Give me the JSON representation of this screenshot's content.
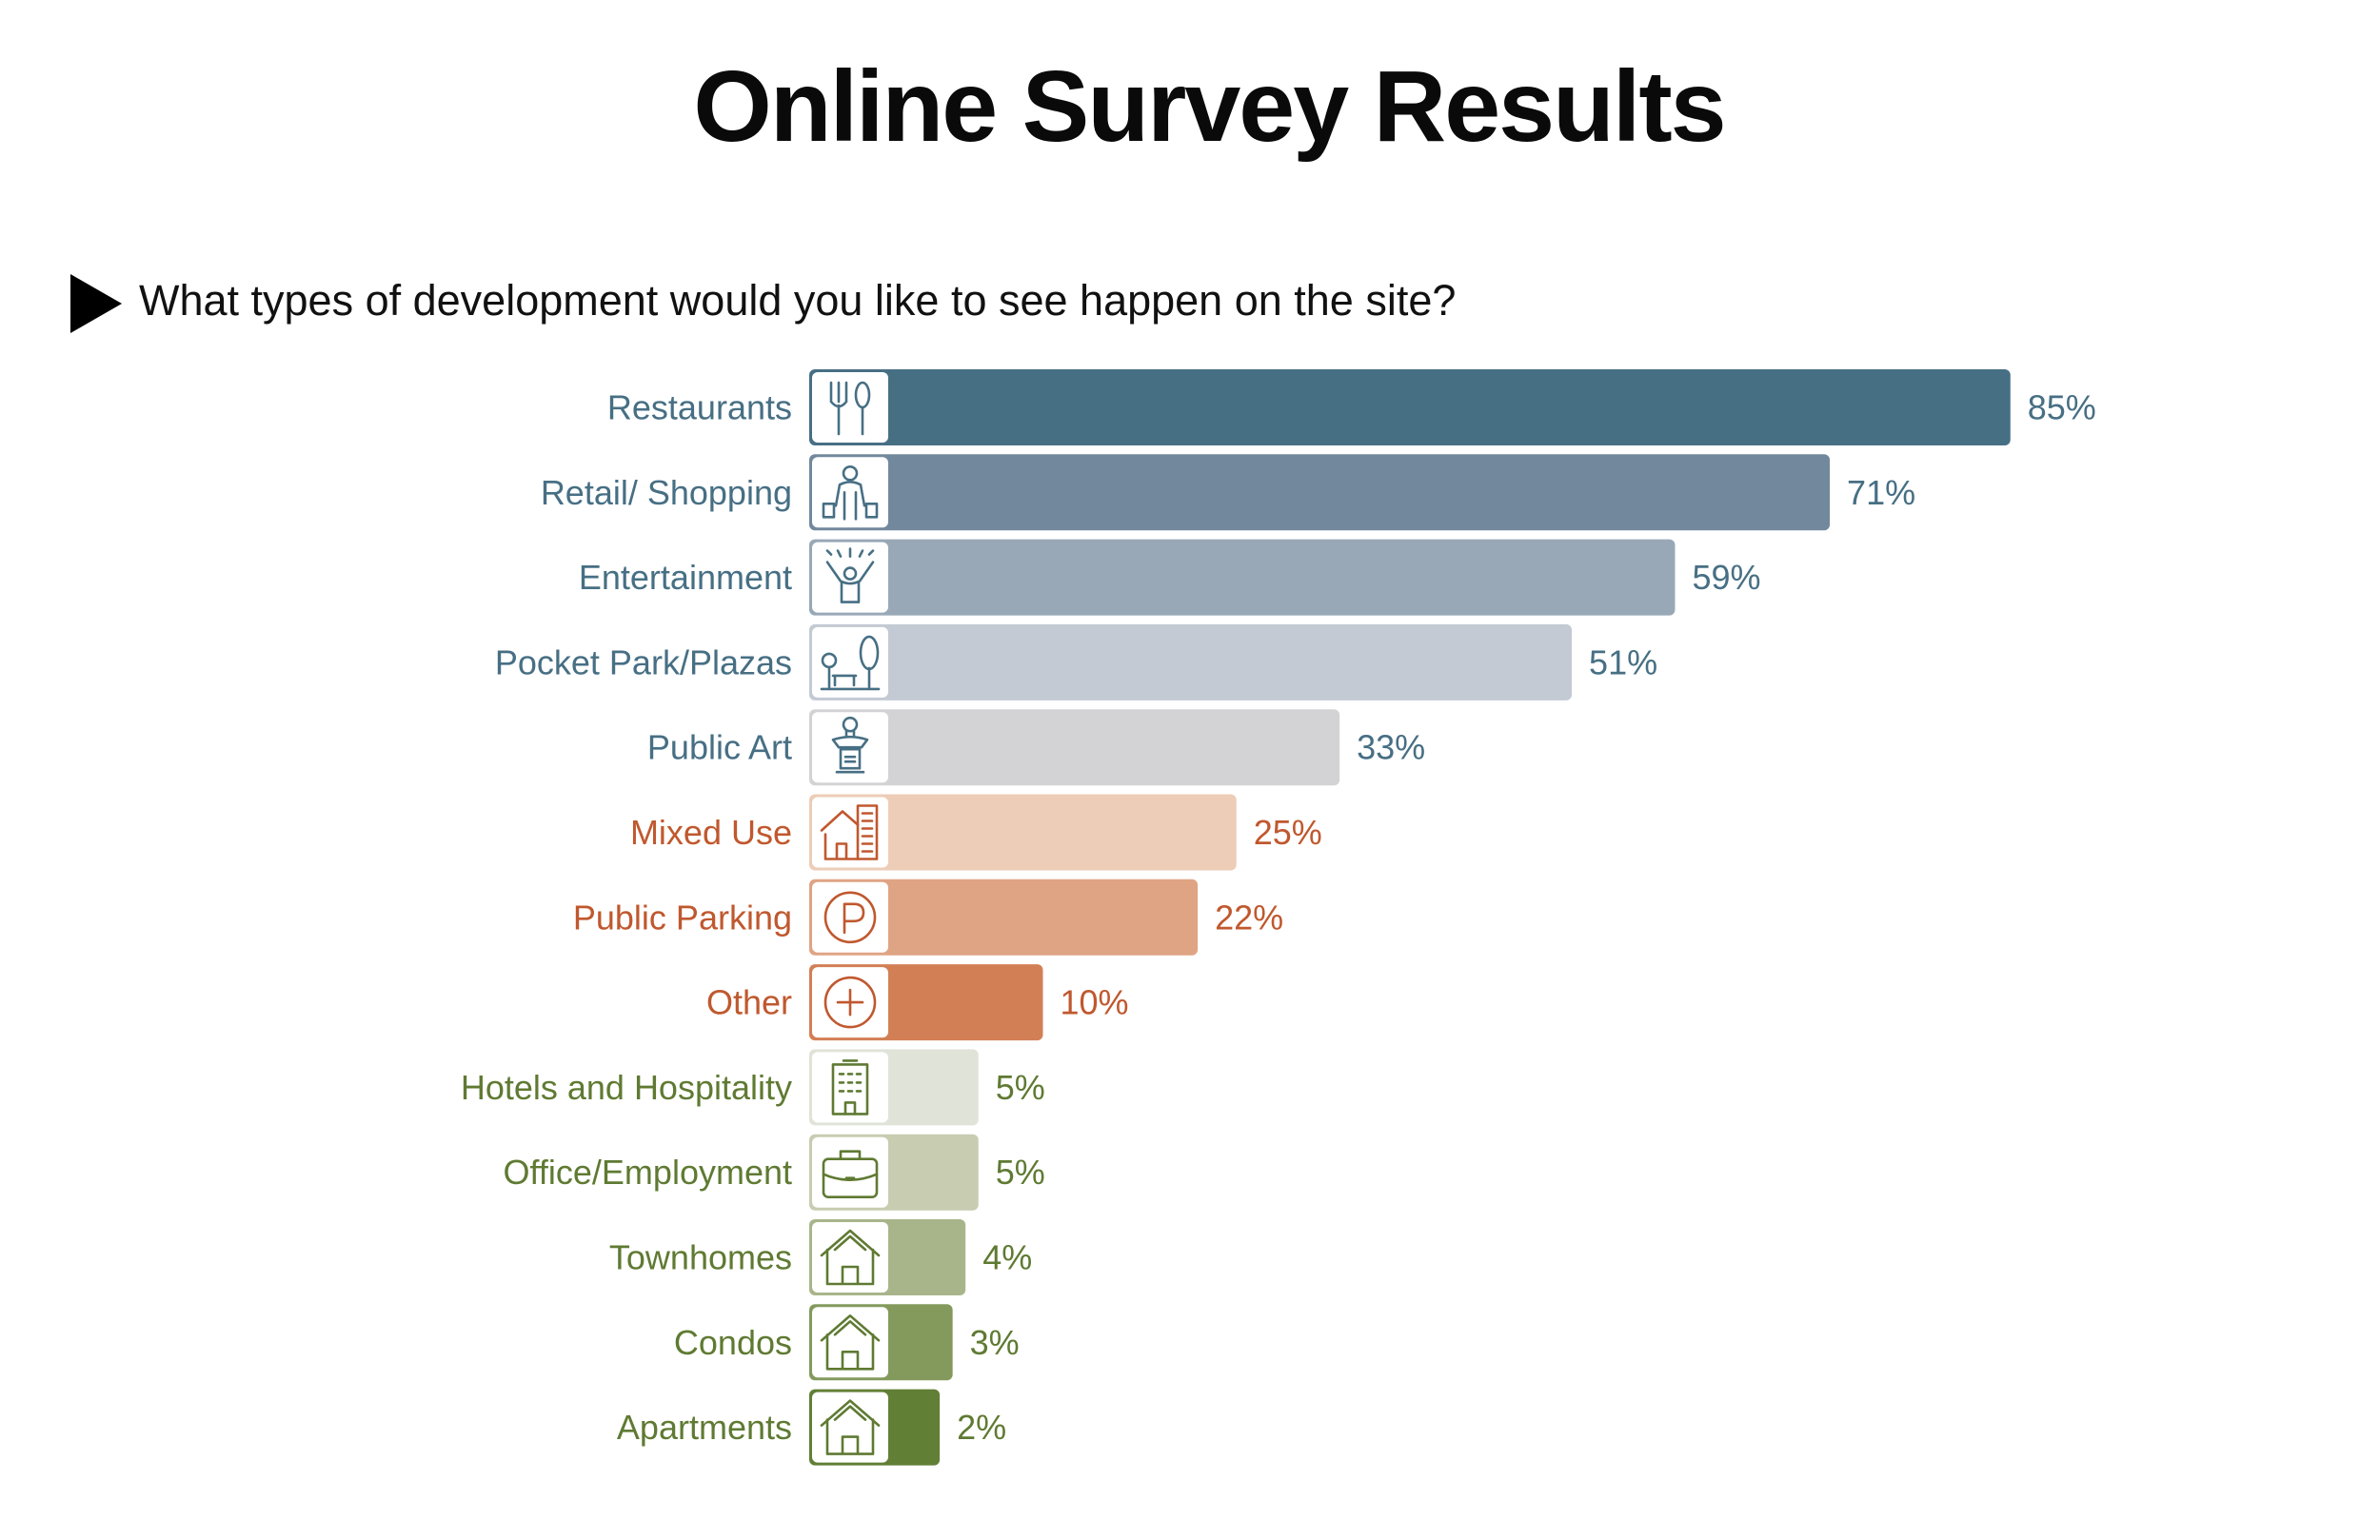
{
  "chart_data": {
    "type": "bar",
    "orientation": "horizontal",
    "title": "Online Survey Results",
    "subtitle": "What types of development would you like to see happen on the site?",
    "xlabel": "",
    "ylabel": "",
    "xlim": [
      0,
      100
    ],
    "grid": false,
    "legend": "none",
    "categories": [
      "Restaurants",
      "Retail/ Shopping",
      "Entertainment",
      "Pocket Park/Plazas",
      "Public Art",
      "Mixed Use",
      "Public Parking",
      "Other",
      "Hotels and Hospitality",
      "Office/Employment",
      "Townhomes",
      "Condos",
      "Apartments"
    ],
    "values": [
      85,
      71,
      59,
      51,
      33,
      25,
      22,
      10,
      5,
      5,
      4,
      3,
      2
    ],
    "value_labels": [
      "85%",
      "71%",
      "59%",
      "51%",
      "33%",
      "25%",
      "22%",
      "10%",
      "5%",
      "5%",
      "4%",
      "3%",
      "2%"
    ],
    "bar_colors": [
      "#476f84",
      "#72889d",
      "#98a8b6",
      "#c3cad3",
      "#d3d3d5",
      "#edcdb7",
      "#dfa484",
      "#d37f55",
      "#e0e3d8",
      "#c8ccb1",
      "#a8b58a",
      "#849a5d",
      "#627f36"
    ],
    "label_colors": [
      "#476f84",
      "#476f84",
      "#476f84",
      "#476f84",
      "#476f84",
      "#c0582e",
      "#c0582e",
      "#c0582e",
      "#5f7a32",
      "#5f7a32",
      "#5f7a32",
      "#5f7a32",
      "#5f7a32"
    ],
    "icons": [
      "fork-spoon-icon",
      "shopper-icon",
      "celebration-icon",
      "park-bench-icon",
      "statue-icon",
      "mixed-use-icon",
      "parking-icon",
      "plus-icon",
      "hotel-icon",
      "briefcase-icon",
      "house-icon",
      "house-icon",
      "house-icon"
    ]
  }
}
